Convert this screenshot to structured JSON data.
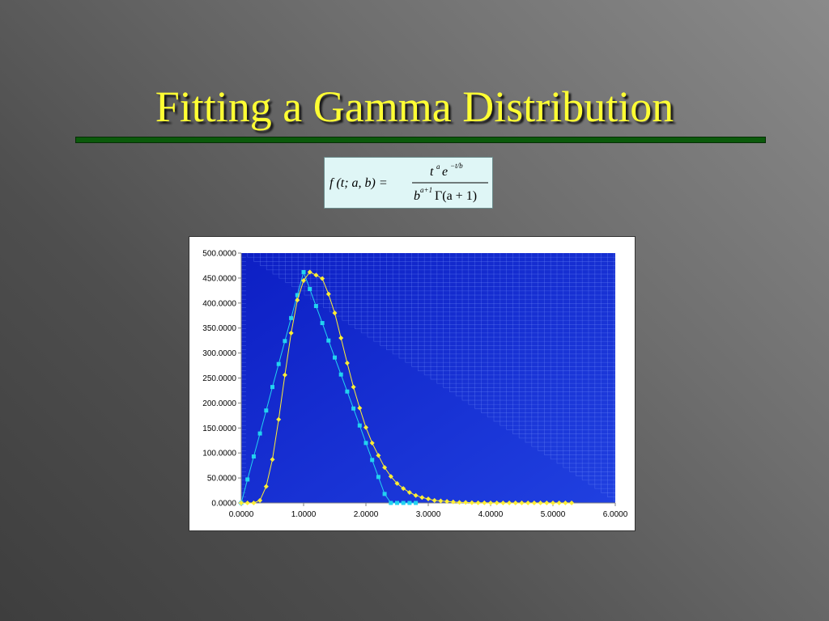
{
  "slide": {
    "title": "Fitting a Gamma Distribution"
  },
  "formula": {
    "lhs": "f (t; a, b) =",
    "num_base": "t",
    "num_sup": "a",
    "num_e": "e",
    "num_e_sup": "−t/b",
    "den_base": "b",
    "den_sup": "a+1",
    "den_rest": "Γ(a + 1)"
  },
  "colors": {
    "title": "#ffff33",
    "rule": "#0b5a0b",
    "plot_bg": "#1a2fd0",
    "series_cyan": "#22d3f0",
    "series_yellow": "#ffee33"
  },
  "chart_data": {
    "type": "scatter",
    "xlim": [
      0,
      6
    ],
    "ylim": [
      0,
      500
    ],
    "x_ticks": [
      "0.0000",
      "1.0000",
      "2.0000",
      "3.0000",
      "4.0000",
      "5.0000",
      "6.0000"
    ],
    "y_ticks": [
      "0.0000",
      "50.0000",
      "100.0000",
      "150.0000",
      "200.0000",
      "250.0000",
      "300.0000",
      "350.0000",
      "400.0000",
      "450.0000",
      "500.0000"
    ],
    "grid": false,
    "series": [
      {
        "color": "#22d3f0",
        "marker": "square",
        "x": [
          0.0,
          0.1,
          0.2,
          0.3,
          0.4,
          0.5,
          0.6,
          0.7,
          0.8,
          0.9,
          1.0,
          1.1,
          1.2,
          1.3,
          1.4,
          1.5,
          1.6,
          1.7,
          1.8,
          1.9,
          2.0,
          2.1,
          2.2,
          2.3,
          2.4,
          2.5,
          2.6,
          2.7,
          2.8
        ],
        "y": [
          0,
          47,
          93,
          139,
          185,
          232,
          278,
          324,
          370,
          416,
          462,
          428,
          394,
          360,
          325,
          291,
          257,
          223,
          189,
          155,
          120,
          86,
          52,
          18,
          0,
          0,
          0,
          0,
          0
        ]
      },
      {
        "color": "#ffee33",
        "marker": "diamond",
        "x": [
          0.0,
          0.1,
          0.2,
          0.3,
          0.4,
          0.5,
          0.6,
          0.7,
          0.8,
          0.9,
          1.0,
          1.1,
          1.2,
          1.3,
          1.4,
          1.5,
          1.6,
          1.7,
          1.8,
          1.9,
          2.0,
          2.1,
          2.2,
          2.3,
          2.4,
          2.5,
          2.6,
          2.7,
          2.8,
          2.9,
          3.0,
          3.1,
          3.2,
          3.3,
          3.4,
          3.5,
          3.6,
          3.7,
          3.8,
          3.9,
          4.0,
          4.1,
          4.2,
          4.3,
          4.4,
          4.5,
          4.6,
          4.7,
          4.8,
          4.9,
          5.0,
          5.1,
          5.2,
          5.3
        ],
        "y": [
          0,
          0,
          0,
          5,
          33,
          87,
          167,
          256,
          340,
          406,
          445,
          462,
          456,
          449,
          418,
          380,
          330,
          280,
          232,
          190,
          151,
          120,
          95,
          71,
          53,
          39,
          29,
          21,
          15,
          11,
          8,
          5,
          4,
          3,
          2,
          1,
          1,
          0.5,
          0.3,
          0.2,
          0.1,
          0.1,
          0,
          0,
          0,
          0,
          0,
          0,
          0,
          0,
          0,
          0,
          0,
          0
        ]
      }
    ]
  }
}
